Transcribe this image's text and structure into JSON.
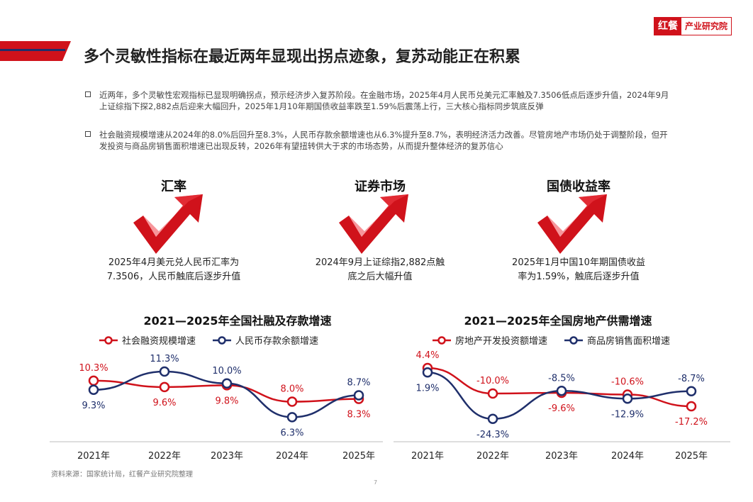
{
  "header": {
    "title": "多个灵敏性指标在最近两年显现出拐点迹象，复苏动能正在积累",
    "logo_brand": "红餐",
    "logo_name": "产业研究院"
  },
  "bullets": [
    "近两年，多个灵敏性宏观指标已显现明确拐点，预示经济步入复苏阶段。在金融市场，2025年4月人民币兑美元汇率触及7.3506低点后逐步升值，2024年9月上证综指下探2,882点后迎来大幅回升，2025年1月10年期国债收益率跌至1.59%后震荡上行，三大核心指标同步筑底反弹",
    "社会融资规模增速从2024年的8.0%后回升至8.3%，人民币存款余额增速也从6.3%提升至8.7%，表明经济活力改善。尽管房地产市场仍处于调整阶段，但开发投资与商品房销售面积增速已出现反转，2026年有望扭转供大于求的市场态势，从而提升整体经济的复苏信心"
  ],
  "indicators": [
    {
      "title": "汇率",
      "desc_line1": "2025年4月美元兑人民币汇率为",
      "desc_line2": "7.3506，人民币触底后逐步升值"
    },
    {
      "title": "证券市场",
      "desc_line1": "2024年9月上证综指2,882点触",
      "desc_line2": "底之后大幅升值"
    },
    {
      "title": "国债收益率",
      "desc_line1": "2025年1月中国10年期国债收益",
      "desc_line2": "率为1.59%，触底后逐步升值"
    }
  ],
  "colors": {
    "red": "#d0121b",
    "navy": "#1f2f6b",
    "accent_red": "#e8222b"
  },
  "chart_data": [
    {
      "type": "line",
      "title": "2021—2025年全国社融及存款增速",
      "categories": [
        "2021年",
        "2022年",
        "2023年",
        "2024年",
        "2025年"
      ],
      "series": [
        {
          "name": "社会融资规模增速",
          "values": [
            10.3,
            9.6,
            9.8,
            8.0,
            8.3
          ],
          "labels": [
            "10.3%",
            "9.6%",
            "9.8%",
            "8.0%",
            "8.3%"
          ],
          "color": "#d0121b"
        },
        {
          "name": "人民币存款余额增速",
          "values": [
            9.3,
            11.3,
            10.0,
            6.3,
            8.7
          ],
          "labels": [
            "9.3%",
            "11.3%",
            "10.0%",
            "6.3%",
            "8.7%"
          ],
          "color": "#1f2f6b"
        }
      ],
      "legend": "top"
    },
    {
      "type": "line",
      "title": "2021—2025年全国房地产供需增速",
      "categories": [
        "2021年",
        "2022年",
        "2023年",
        "2024年",
        "2025年"
      ],
      "series": [
        {
          "name": "房地产开发投资额增速",
          "values": [
            4.4,
            -10.0,
            -9.6,
            -10.6,
            -17.2
          ],
          "labels": [
            "4.4%",
            "-10.0%",
            "-9.6%",
            "-10.6%",
            "-17.2%"
          ],
          "color": "#d0121b"
        },
        {
          "name": "商品房销售面积增速",
          "values": [
            1.9,
            -24.3,
            -8.5,
            -12.9,
            -8.7
          ],
          "labels": [
            "1.9%",
            "-24.3%",
            "-8.5%",
            "-12.9%",
            "-8.7%"
          ],
          "color": "#1f2f6b"
        }
      ],
      "legend": "top"
    }
  ],
  "footer": {
    "source": "资料来源：国家统计局，红餐产业研究院整理",
    "page": "7"
  }
}
